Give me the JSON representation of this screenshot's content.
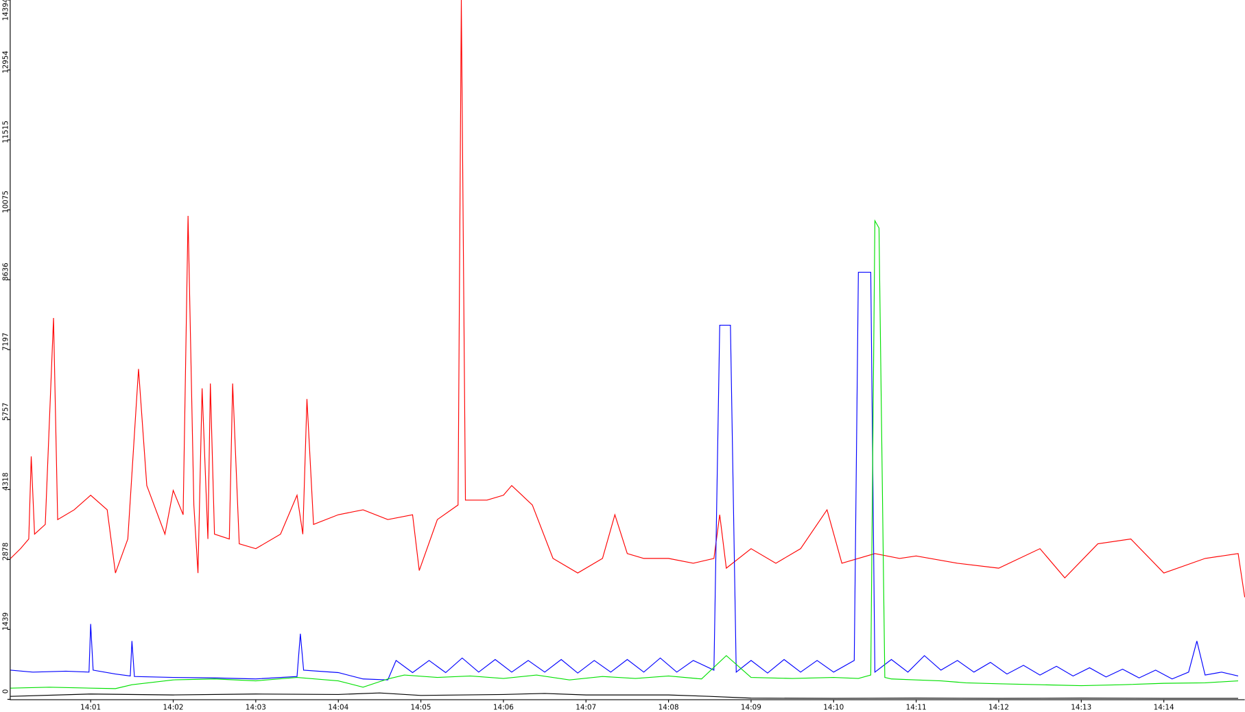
{
  "chart_data": {
    "type": "line",
    "xlim": [
      0.03,
      14.98
    ],
    "ylim": [
      0,
      14394
    ],
    "xticks": [
      {
        "value": 1,
        "label": "14:01"
      },
      {
        "value": 2,
        "label": "14:02"
      },
      {
        "value": 3,
        "label": "14:03"
      },
      {
        "value": 4,
        "label": "14:04"
      },
      {
        "value": 5,
        "label": "14:05"
      },
      {
        "value": 6,
        "label": "14:06"
      },
      {
        "value": 7,
        "label": "14:07"
      },
      {
        "value": 8,
        "label": "14:08"
      },
      {
        "value": 9,
        "label": "14:09"
      },
      {
        "value": 10,
        "label": "14:10"
      },
      {
        "value": 11,
        "label": "14:11"
      },
      {
        "value": 12,
        "label": "14:12"
      },
      {
        "value": 13,
        "label": "14:13"
      },
      {
        "value": 14,
        "label": "14:14"
      }
    ],
    "yticks": [
      0,
      1439,
      2878,
      4318,
      5757,
      7197,
      8636,
      10075,
      11515,
      12954,
      14394
    ],
    "series": [
      {
        "color": "#ff0000",
        "x": [
          0.03,
          0.15,
          0.25,
          0.28,
          0.32,
          0.45,
          0.55,
          0.6,
          0.8,
          1.0,
          1.2,
          1.3,
          1.45,
          1.58,
          1.68,
          1.9,
          2.0,
          2.12,
          2.18,
          2.25,
          2.3,
          2.35,
          2.42,
          2.45,
          2.5,
          2.68,
          2.72,
          2.8,
          3.0,
          3.3,
          3.5,
          3.57,
          3.62,
          3.7,
          4.0,
          4.3,
          4.6,
          4.9,
          4.98,
          5.2,
          5.45,
          5.49,
          5.54,
          5.8,
          6.0,
          6.1,
          6.35,
          6.6,
          6.9,
          7.2,
          7.35,
          7.5,
          7.7,
          8.0,
          8.3,
          8.55,
          8.62,
          8.7,
          9.0,
          9.3,
          9.6,
          9.92,
          10.1,
          10.5,
          10.8,
          11.0,
          11.5,
          12.0,
          12.5,
          12.8,
          13.2,
          13.6,
          14.0,
          14.5,
          14.9,
          14.98
        ],
        "values": [
          2900,
          3100,
          3300,
          5000,
          3400,
          3600,
          7850,
          3700,
          3900,
          4200,
          3900,
          2600,
          3300,
          6800,
          4400,
          3400,
          4300,
          3800,
          9950,
          4000,
          2600,
          6400,
          3300,
          6500,
          3400,
          3300,
          6500,
          3200,
          3100,
          3400,
          4200,
          3400,
          6180,
          3600,
          3800,
          3900,
          3700,
          3800,
          2650,
          3700,
          4000,
          14394,
          4100,
          4100,
          4200,
          4400,
          4000,
          2900,
          2600,
          2900,
          3800,
          3000,
          2900,
          2900,
          2800,
          2900,
          3800,
          2700,
          3100,
          2800,
          3100,
          3900,
          2800,
          3000,
          2900,
          2950,
          2800,
          2700,
          3100,
          2500,
          3200,
          3300,
          2600,
          2900,
          3000,
          2100
        ]
      },
      {
        "color": "#0000ff",
        "x": [
          0.03,
          0.3,
          0.7,
          0.98,
          1.0,
          1.03,
          1.3,
          1.48,
          1.5,
          1.53,
          2.0,
          2.5,
          3.0,
          3.5,
          3.54,
          3.58,
          4.0,
          4.3,
          4.6,
          4.7,
          4.9,
          5.1,
          5.3,
          5.5,
          5.7,
          5.9,
          6.1,
          6.3,
          6.5,
          6.7,
          6.9,
          7.1,
          7.3,
          7.5,
          7.7,
          7.9,
          8.1,
          8.3,
          8.55,
          8.62,
          8.75,
          8.82,
          9.0,
          9.2,
          9.4,
          9.6,
          9.8,
          10.0,
          10.25,
          10.3,
          10.45,
          10.5,
          10.7,
          10.9,
          11.1,
          11.3,
          11.5,
          11.7,
          11.9,
          12.1,
          12.3,
          12.5,
          12.7,
          12.9,
          13.1,
          13.3,
          13.5,
          13.7,
          13.9,
          14.1,
          14.3,
          14.4,
          14.5,
          14.7,
          14.9
        ],
        "values": [
          600,
          560,
          580,
          560,
          1550,
          600,
          520,
          480,
          1200,
          470,
          450,
          440,
          420,
          470,
          1350,
          600,
          550,
          420,
          400,
          800,
          550,
          800,
          550,
          850,
          560,
          820,
          560,
          800,
          560,
          820,
          540,
          800,
          560,
          820,
          560,
          850,
          560,
          800,
          600,
          7700,
          7700,
          560,
          800,
          540,
          820,
          560,
          800,
          560,
          800,
          8790,
          8790,
          560,
          820,
          560,
          900,
          600,
          800,
          560,
          760,
          520,
          700,
          500,
          680,
          480,
          650,
          460,
          620,
          440,
          600,
          420,
          560,
          1200,
          500,
          560,
          480
        ]
      },
      {
        "color": "#00e000",
        "x": [
          0.03,
          0.5,
          1.0,
          1.3,
          1.5,
          2.0,
          2.5,
          3.0,
          3.5,
          4.0,
          4.3,
          4.6,
          4.8,
          5.2,
          5.6,
          6.0,
          6.4,
          6.8,
          7.2,
          7.6,
          8.0,
          8.4,
          8.7,
          9.0,
          9.5,
          10.0,
          10.3,
          10.45,
          10.5,
          10.55,
          10.62,
          10.7,
          11.0,
          11.3,
          11.6,
          12.0,
          12.5,
          13.0,
          13.5,
          14.0,
          14.5,
          14.9
        ],
        "values": [
          230,
          250,
          230,
          220,
          300,
          400,
          420,
          380,
          450,
          380,
          250,
          420,
          500,
          450,
          480,
          430,
          500,
          400,
          470,
          430,
          480,
          420,
          900,
          450,
          430,
          450,
          430,
          500,
          9850,
          9700,
          450,
          420,
          400,
          380,
          340,
          320,
          300,
          280,
          300,
          330,
          340,
          380
        ]
      },
      {
        "color": "#000000",
        "x": [
          0.03,
          1.0,
          2.0,
          3.0,
          4.0,
          4.5,
          5.0,
          6.0,
          6.5,
          7.0,
          8.0,
          8.5,
          9.0,
          10.0,
          11.0,
          12.0,
          13.0,
          14.0,
          14.9
        ],
        "values": [
          60,
          110,
          90,
          110,
          100,
          130,
          80,
          100,
          120,
          90,
          90,
          60,
          25,
          20,
          25,
          20,
          25,
          20,
          20
        ]
      }
    ]
  }
}
